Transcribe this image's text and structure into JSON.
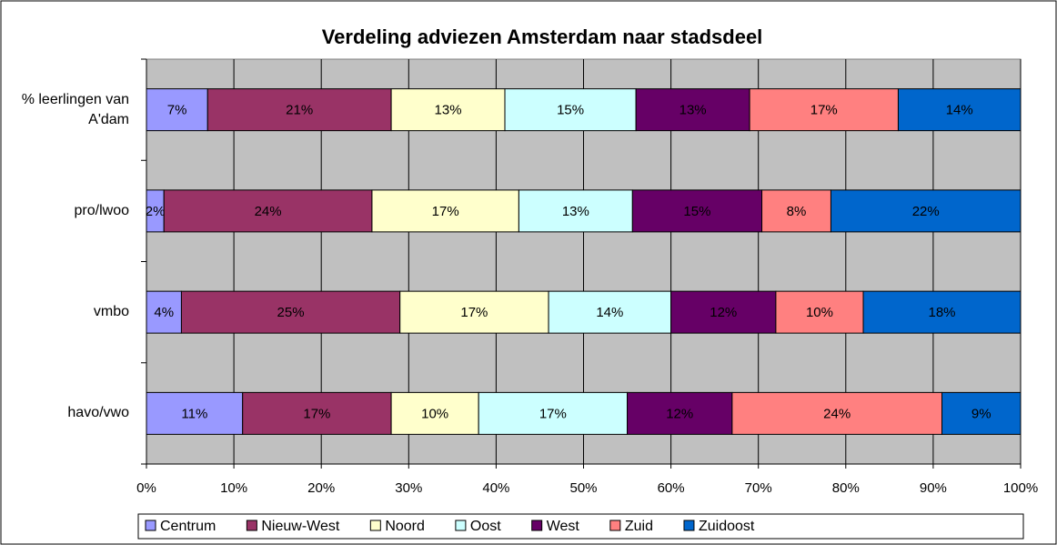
{
  "chart_data": {
    "type": "stacked-barh",
    "title": "Verdeling adviezen Amsterdam naar stadsdeel",
    "categories": [
      "% leerlingen van A'dam",
      "pro/lwoo",
      "vmbo",
      "havo/vwo"
    ],
    "series": [
      {
        "name": "Centrum",
        "color": "#9999ff",
        "values": [
          7,
          2,
          4,
          11
        ],
        "value_labels": [
          "7%",
          "2%",
          "4%",
          "11%"
        ]
      },
      {
        "name": "Nieuw-West",
        "color": "#993366",
        "values": [
          21,
          23.8,
          25,
          17
        ],
        "value_labels": [
          "21%",
          "24%",
          "25%",
          "17%"
        ]
      },
      {
        "name": "Noord",
        "color": "#ffffcc",
        "values": [
          13,
          16.8,
          17,
          10
        ],
        "value_labels": [
          "13%",
          "17%",
          "17%",
          "10%"
        ]
      },
      {
        "name": "Oost",
        "color": "#ccffff",
        "values": [
          15,
          13,
          14,
          17
        ],
        "value_labels": [
          "15%",
          "13%",
          "14%",
          "17%"
        ]
      },
      {
        "name": "West",
        "color": "#660066",
        "values": [
          13,
          14.8,
          12,
          12
        ],
        "value_labels": [
          "13%",
          "15%",
          "12%",
          "12%"
        ]
      },
      {
        "name": "Zuid",
        "color": "#ff8080",
        "values": [
          17,
          7.9,
          10,
          24
        ],
        "value_labels": [
          "17%",
          "8%",
          "10%",
          "24%"
        ]
      },
      {
        "name": "Zuidoost",
        "color": "#0066cc",
        "values": [
          14,
          21.7,
          18,
          9
        ],
        "value_labels": [
          "14%",
          "22%",
          "18%",
          "9%"
        ]
      }
    ],
    "xlim": [
      0,
      100
    ],
    "xticks": [
      {
        "value": 0,
        "label": "0%"
      },
      {
        "value": 10,
        "label": "10%"
      },
      {
        "value": 20,
        "label": "20%"
      },
      {
        "value": 30,
        "label": "30%"
      },
      {
        "value": 40,
        "label": "40%"
      },
      {
        "value": 50,
        "label": "50%"
      },
      {
        "value": 60,
        "label": "60%"
      },
      {
        "value": 70,
        "label": "70%"
      },
      {
        "value": 80,
        "label": "80%"
      },
      {
        "value": 90,
        "label": "90%"
      },
      {
        "value": 100,
        "label": "100%"
      }
    ],
    "grid": true,
    "legend": "bottom"
  }
}
